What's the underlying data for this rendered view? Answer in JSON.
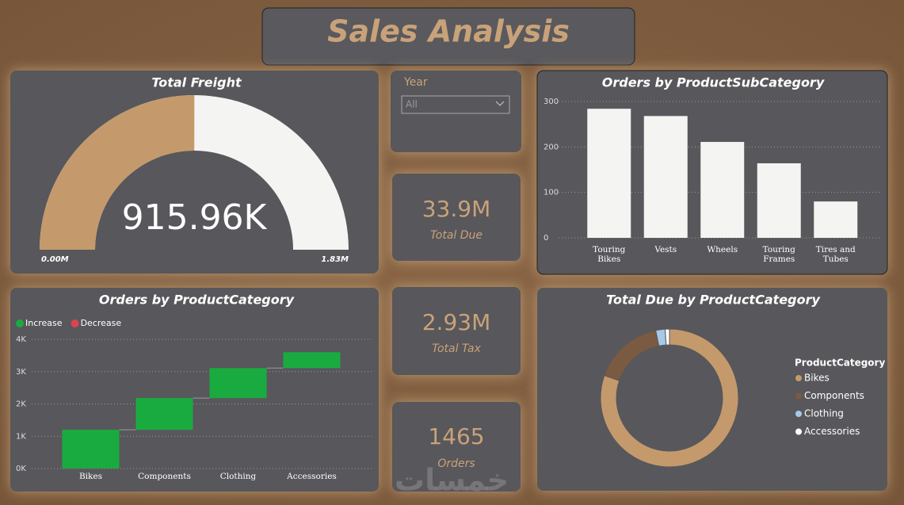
{
  "header": {
    "title": "Sales Analysis"
  },
  "slicer": {
    "label": "Year",
    "value": "All"
  },
  "kpis": [
    {
      "value": "33.9M",
      "label": "Total Due"
    },
    {
      "value": "2.93M",
      "label": "Total Tax"
    },
    {
      "value": "1465",
      "label": "Orders"
    }
  ],
  "watermark": "خمسات",
  "chart_data": [
    {
      "type": "gauge",
      "title": "Total Freight",
      "value": 915960,
      "value_label": "915.96K",
      "min": {
        "value": 0,
        "label": "0.00M"
      },
      "max": {
        "value": 1830000,
        "label": "1.83M"
      },
      "color": "#c49a6c",
      "track_color": "#f4f4f2"
    },
    {
      "type": "bar",
      "title": "Orders by ProductSubCategory",
      "categories": [
        "Touring Bikes",
        "Vests",
        "Wheels",
        "Touring Frames",
        "Tires and Tubes"
      ],
      "values": [
        284,
        268,
        211,
        164,
        80
      ],
      "color": "#f4f4f2",
      "ylim": [
        0,
        300
      ],
      "yticks": [
        0,
        100,
        200,
        300
      ],
      "grid": true
    },
    {
      "type": "waterfall",
      "title": "Orders by ProductCategory",
      "legend": [
        {
          "name": "Increase",
          "color": "#1aab40"
        },
        {
          "name": "Decrease",
          "color": "#e0434d"
        }
      ],
      "categories": [
        "Bikes",
        "Components",
        "Clothing",
        "Accessories"
      ],
      "values": [
        1200,
        980,
        930,
        490
      ],
      "ylim": [
        0,
        4000
      ],
      "yticks": [
        {
          "value": 0,
          "label": "0K"
        },
        {
          "value": 1000,
          "label": "1K"
        },
        {
          "value": 2000,
          "label": "2K"
        },
        {
          "value": 3000,
          "label": "3K"
        },
        {
          "value": 4000,
          "label": "4K"
        }
      ],
      "grid": true
    },
    {
      "type": "donut",
      "title": "Total Due by ProductCategory",
      "legend_title": "ProductCategory",
      "categories": [
        "Bikes",
        "Components",
        "Clothing",
        "Accessories"
      ],
      "values": [
        80.3,
        16.5,
        2.2,
        1.0
      ],
      "colors": [
        "#c49a6c",
        "#7a5a40",
        "#a8c8e8",
        "#ffffff"
      ]
    }
  ]
}
